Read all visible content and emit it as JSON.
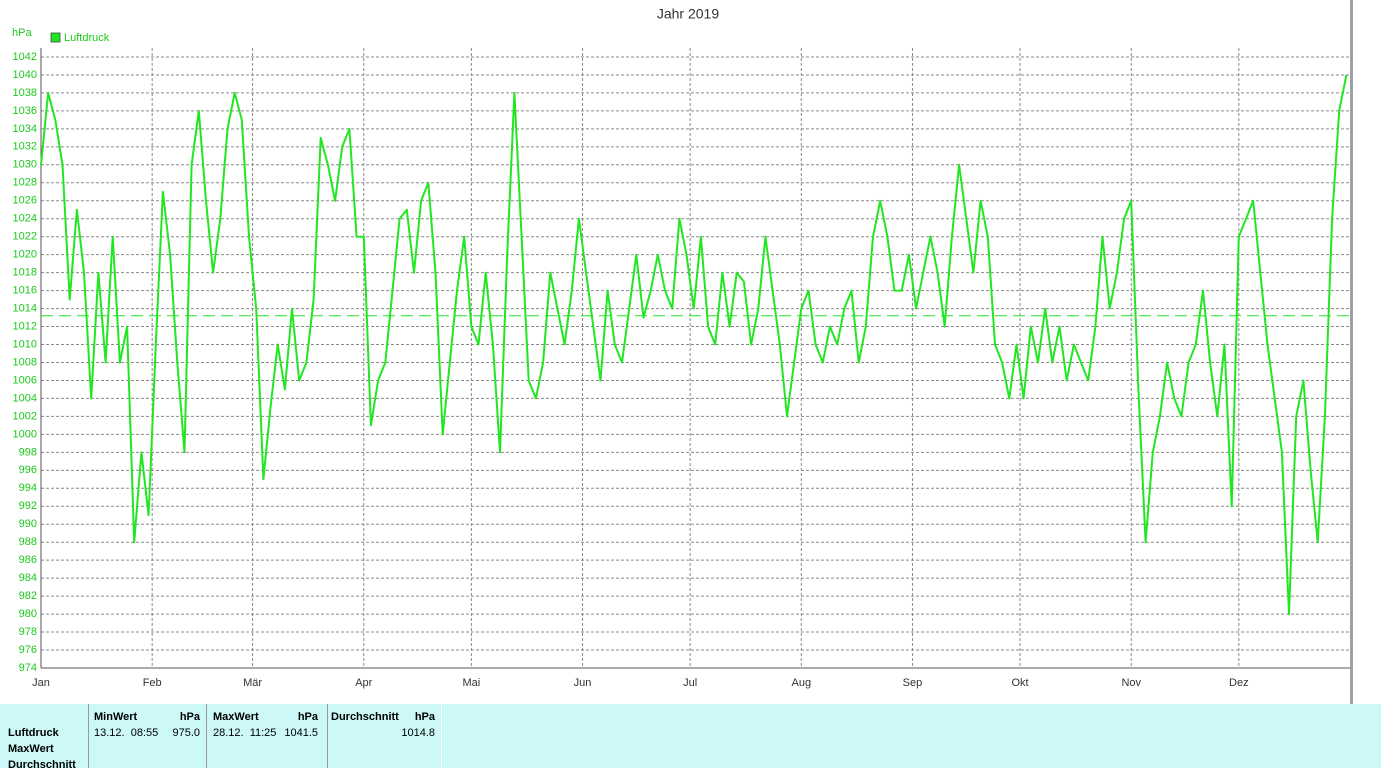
{
  "chart_data": {
    "type": "line",
    "title": "Jahr 2019",
    "y_unit": "hPa",
    "x": [
      1,
      3,
      5,
      7,
      9,
      11,
      13,
      15,
      17,
      19,
      21,
      23,
      25,
      27,
      29,
      31,
      33,
      35,
      37,
      39,
      41,
      43,
      45,
      47,
      49,
      51,
      53,
      55,
      57,
      59,
      61,
      63,
      65,
      67,
      69,
      71,
      73,
      75,
      77,
      79,
      81,
      83,
      85,
      87,
      89,
      91,
      93,
      95,
      97,
      99,
      101,
      103,
      105,
      107,
      109,
      111,
      113,
      115,
      117,
      119,
      121,
      123,
      125,
      127,
      129,
      131,
      133,
      135,
      137,
      139,
      141,
      143,
      145,
      147,
      149,
      151,
      153,
      155,
      157,
      159,
      161,
      163,
      165,
      167,
      169,
      171,
      173,
      175,
      177,
      179,
      181,
      183,
      185,
      187,
      189,
      191,
      193,
      195,
      197,
      199,
      201,
      203,
      205,
      207,
      209,
      211,
      213,
      215,
      217,
      219,
      221,
      223,
      225,
      227,
      229,
      231,
      233,
      235,
      237,
      239,
      241,
      243,
      245,
      247,
      249,
      251,
      253,
      255,
      257,
      259,
      261,
      263,
      265,
      267,
      269,
      271,
      273,
      275,
      277,
      279,
      281,
      283,
      285,
      287,
      289,
      291,
      293,
      295,
      297,
      299,
      301,
      303,
      305,
      307,
      309,
      311,
      313,
      315,
      317,
      319,
      321,
      323,
      325,
      327,
      329,
      331,
      333,
      335,
      337,
      339,
      341,
      343,
      345,
      347,
      349,
      351,
      353,
      355,
      357,
      359,
      361,
      363,
      365
    ],
    "series": [
      {
        "name": "Luftdruck",
        "color": "#22e622",
        "values": [
          1030,
          1038,
          1035,
          1030,
          1015,
          1025,
          1018,
          1004,
          1018,
          1008,
          1022,
          1008,
          1012,
          988,
          998,
          991,
          1010,
          1027,
          1020,
          1008,
          998,
          1030,
          1036,
          1026,
          1018,
          1024,
          1034,
          1038,
          1035,
          1022,
          1014,
          995,
          1003,
          1010,
          1005,
          1014,
          1006,
          1008,
          1015,
          1033,
          1030,
          1026,
          1032,
          1034,
          1022,
          1022,
          1001,
          1006,
          1008,
          1016,
          1024,
          1025,
          1018,
          1026,
          1028,
          1018,
          1000,
          1008,
          1016,
          1022,
          1012,
          1010,
          1018,
          1010,
          998,
          1020,
          1038,
          1022,
          1006,
          1004,
          1008,
          1018,
          1014,
          1010,
          1016,
          1024,
          1018,
          1012,
          1006,
          1016,
          1010,
          1008,
          1014,
          1020,
          1013,
          1016,
          1020,
          1016,
          1014,
          1024,
          1020,
          1014,
          1022,
          1012,
          1010,
          1018,
          1012,
          1018,
          1017,
          1010,
          1014,
          1022,
          1016,
          1010,
          1002,
          1008,
          1014,
          1016,
          1010,
          1008,
          1012,
          1010,
          1014,
          1016,
          1008,
          1012,
          1022,
          1026,
          1022,
          1016,
          1016,
          1020,
          1014,
          1018,
          1022,
          1018,
          1012,
          1022,
          1030,
          1024,
          1018,
          1026,
          1022,
          1010,
          1008,
          1004,
          1010,
          1004,
          1012,
          1008,
          1014,
          1008,
          1012,
          1006,
          1010,
          1008,
          1006,
          1012,
          1022,
          1014,
          1018,
          1024,
          1026,
          1005,
          988,
          998,
          1002,
          1008,
          1004,
          1002,
          1008,
          1010,
          1016,
          1008,
          1002,
          1010,
          992,
          1022,
          1024,
          1026,
          1018,
          1010,
          1004,
          998,
          980,
          1002,
          1006,
          996,
          988,
          1002,
          1024,
          1036,
          1040
        ]
      }
    ],
    "reference_line": 1013.2,
    "xlim": [
      1,
      366
    ],
    "xticks": [
      {
        "value": 1,
        "label": "Jan"
      },
      {
        "value": 32,
        "label": "Feb"
      },
      {
        "value": 60,
        "label": "Mär"
      },
      {
        "value": 91,
        "label": "Apr"
      },
      {
        "value": 121,
        "label": "Mai"
      },
      {
        "value": 152,
        "label": "Jun"
      },
      {
        "value": 182,
        "label": "Jul"
      },
      {
        "value": 213,
        "label": "Aug"
      },
      {
        "value": 244,
        "label": "Sep"
      },
      {
        "value": 274,
        "label": "Okt"
      },
      {
        "value": 305,
        "label": "Nov"
      },
      {
        "value": 335,
        "label": "Dez"
      }
    ],
    "ylim": [
      974,
      1043
    ],
    "yticks": [
      974,
      976,
      978,
      980,
      982,
      984,
      986,
      988,
      990,
      992,
      994,
      996,
      998,
      1000,
      1002,
      1004,
      1006,
      1008,
      1010,
      1012,
      1014,
      1016,
      1018,
      1020,
      1022,
      1024,
      1026,
      1028,
      1030,
      1032,
      1034,
      1036,
      1038,
      1040,
      1042
    ],
    "grid": true,
    "legend": "top-left"
  },
  "table": {
    "row_labels": [
      "Luftdruck",
      "MaxWert",
      "Durchschnitt"
    ],
    "columns": [
      {
        "header": "MinWert",
        "unit": "hPa",
        "time": "13.12.  08:55",
        "value": "975.0"
      },
      {
        "header": "MaxWert",
        "unit": "hPa",
        "time": "28.12.  11:25",
        "value": "1041.5"
      },
      {
        "header": "Durchschnitt",
        "unit": "hPa",
        "value": "1014.8"
      }
    ]
  }
}
